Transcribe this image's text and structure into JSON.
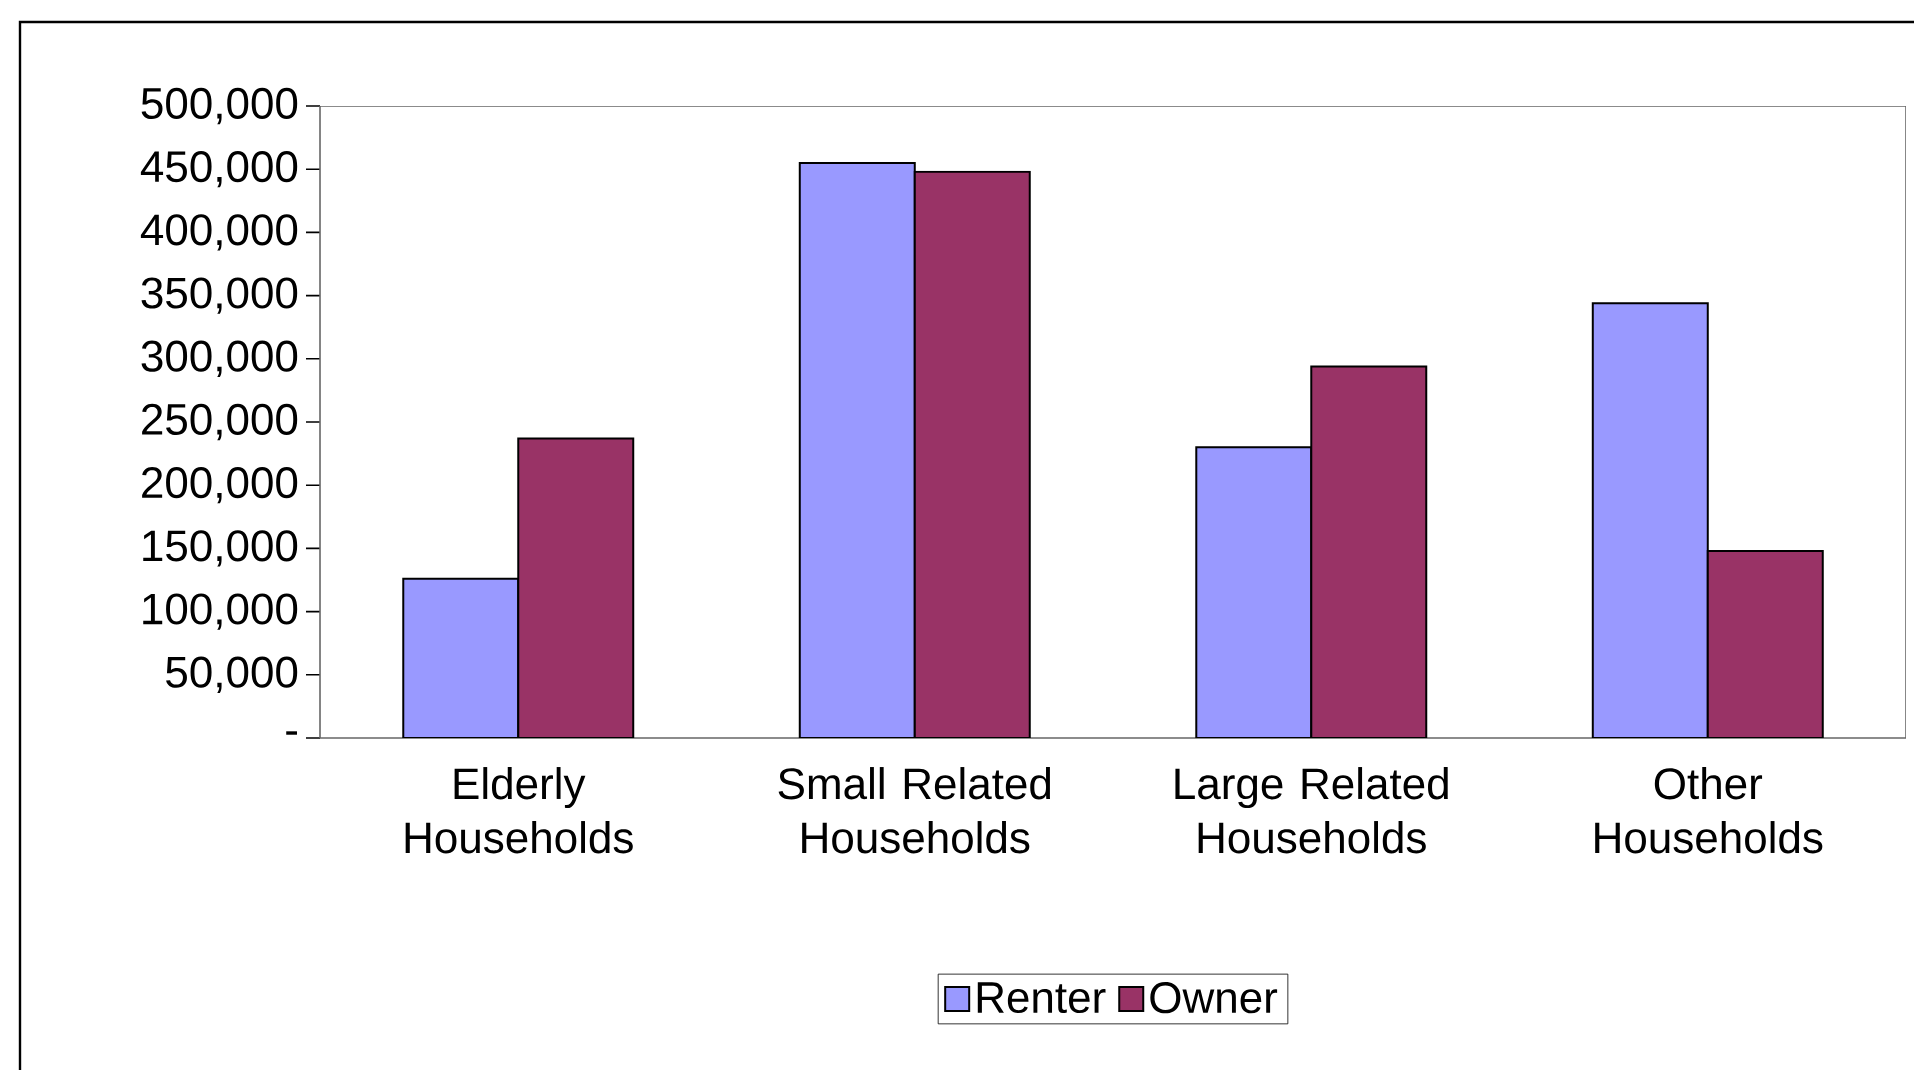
{
  "chart_data": {
    "type": "bar",
    "categories": [
      "Elderly Households",
      "Small Related Households",
      "Large Related Households",
      "Other Households"
    ],
    "series": [
      {
        "name": "Renter",
        "color": "#9999ff",
        "values": [
          126000,
          455000,
          230000,
          344000
        ]
      },
      {
        "name": "Owner",
        "color": "#993366",
        "values": [
          237000,
          448000,
          294000,
          148000
        ]
      }
    ],
    "ylim": [
      0,
      500000
    ],
    "yticks": [
      {
        "value": 0,
        "label": "-"
      },
      {
        "value": 50000,
        "label": "50,000"
      },
      {
        "value": 100000,
        "label": "100,000"
      },
      {
        "value": 150000,
        "label": "150,000"
      },
      {
        "value": 200000,
        "label": "200,000"
      },
      {
        "value": 250000,
        "label": "250,000"
      },
      {
        "value": 300000,
        "label": "300,000"
      },
      {
        "value": 350000,
        "label": "350,000"
      },
      {
        "value": 400000,
        "label": "400,000"
      },
      {
        "value": 450000,
        "label": "450,000"
      },
      {
        "value": 500000,
        "label": "500,000"
      }
    ],
    "grid": false,
    "legend": "bottom"
  }
}
